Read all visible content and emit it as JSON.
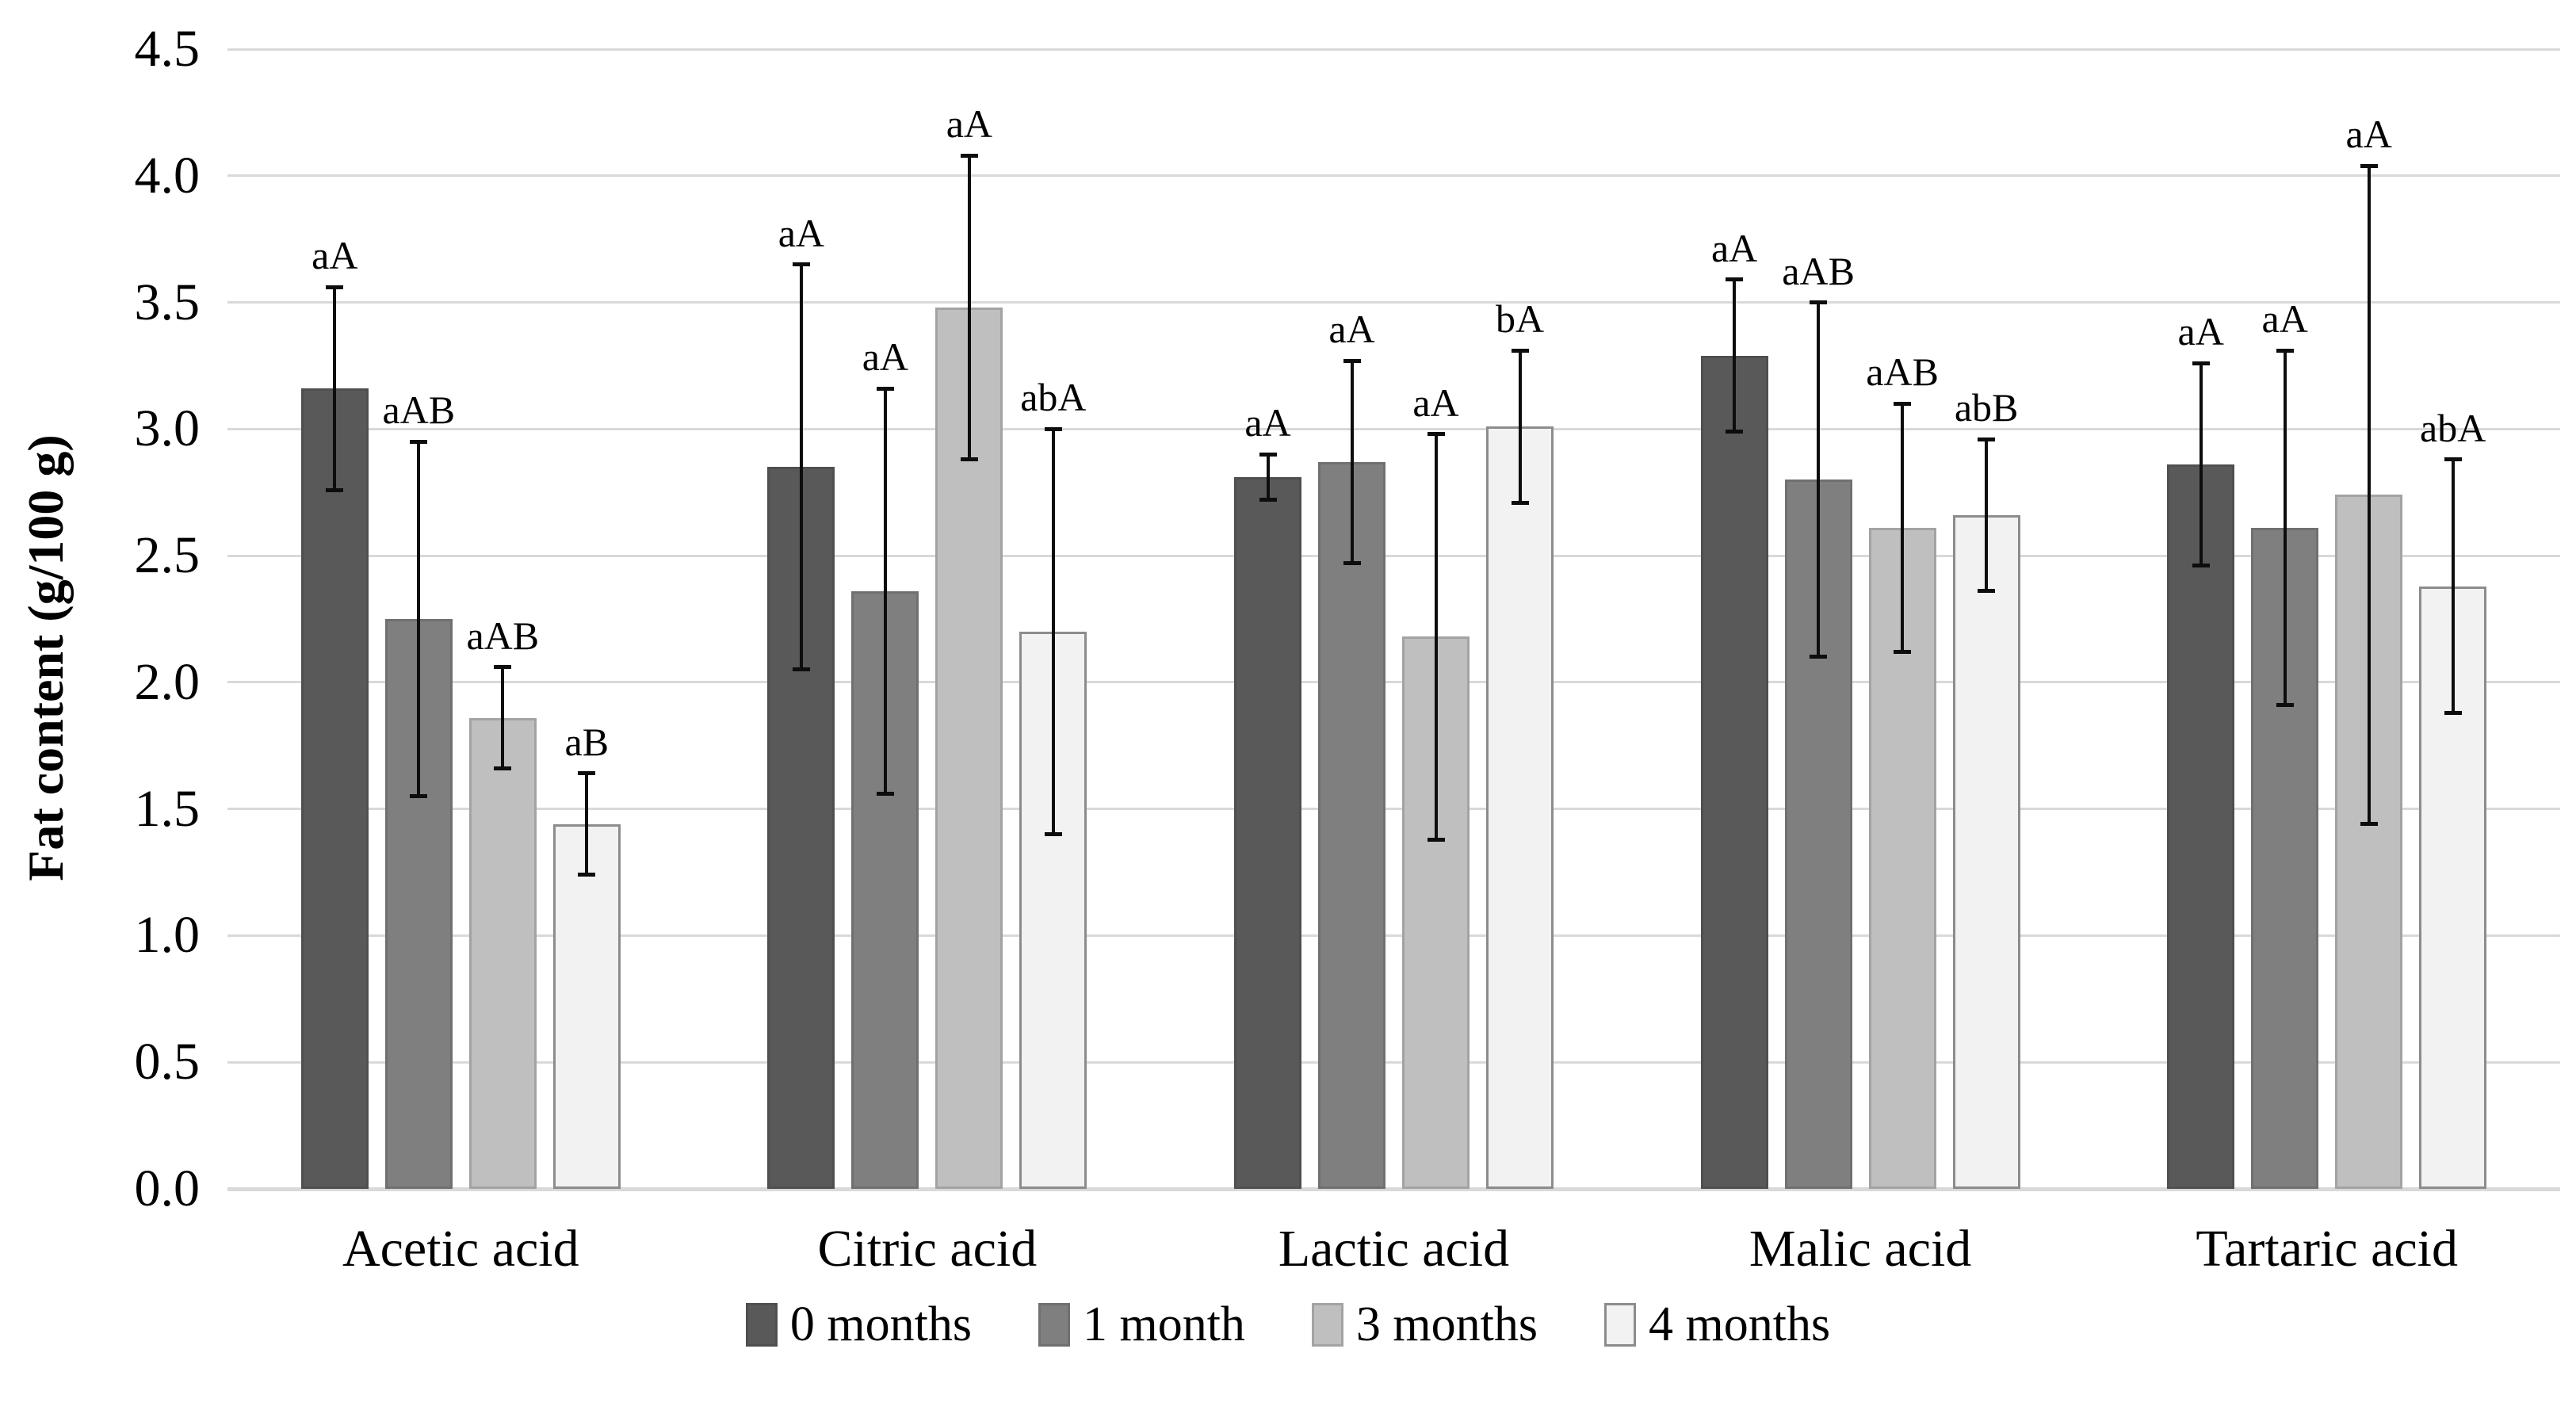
{
  "chart_data": {
    "type": "bar",
    "title": "",
    "ylabel": "Fat content (g/100 g)",
    "xlabel": "",
    "ylim": [
      0.0,
      4.5
    ],
    "ytick_step": 0.5,
    "yticks": [
      "0.0",
      "0.5",
      "1.0",
      "1.5",
      "2.0",
      "2.5",
      "3.0",
      "3.5",
      "4.0",
      "4.5"
    ],
    "grid": true,
    "gridline_color": "#d9d9d9",
    "error_bar_color": "#0d0d0d",
    "legend_position": "bottom",
    "categories": [
      "Acetic acid",
      "Citric acid",
      "Lactic acid",
      "Malic acid",
      "Tartaric acid"
    ],
    "series": [
      {
        "name": "0 months",
        "color": "#595959",
        "border_color": "#4f4f4f",
        "values": [
          3.16,
          2.85,
          2.81,
          3.29,
          2.86
        ],
        "errors": [
          0.4,
          0.8,
          0.09,
          0.3,
          0.4
        ],
        "labels": [
          "aA",
          "aA",
          "aA",
          "aA",
          "aA"
        ]
      },
      {
        "name": "1 month",
        "color": "#7f7f7f",
        "border_color": "#707070",
        "values": [
          2.25,
          2.36,
          2.87,
          2.8,
          2.61
        ],
        "errors": [
          0.7,
          0.8,
          0.4,
          0.7,
          0.7
        ],
        "labels": [
          "aAB",
          "aA",
          "aA",
          "aAB",
          "aA"
        ]
      },
      {
        "name": "3 months",
        "color": "#bfbfbf",
        "border_color": "#a3a3a3",
        "values": [
          1.86,
          3.48,
          2.18,
          2.61,
          2.74
        ],
        "errors": [
          0.2,
          0.6,
          0.8,
          0.49,
          1.3
        ],
        "labels": [
          "aAB",
          "aA",
          "aA",
          "aAB",
          "aA"
        ]
      },
      {
        "name": "4 months",
        "color": "#f2f2f2",
        "border_color": "#8c8c8c",
        "values": [
          1.44,
          2.2,
          3.01,
          2.66,
          2.38
        ],
        "errors": [
          0.2,
          0.8,
          0.3,
          0.3,
          0.5
        ],
        "labels": [
          "aB",
          "abA",
          "bA",
          "abB",
          "abA"
        ]
      }
    ]
  }
}
